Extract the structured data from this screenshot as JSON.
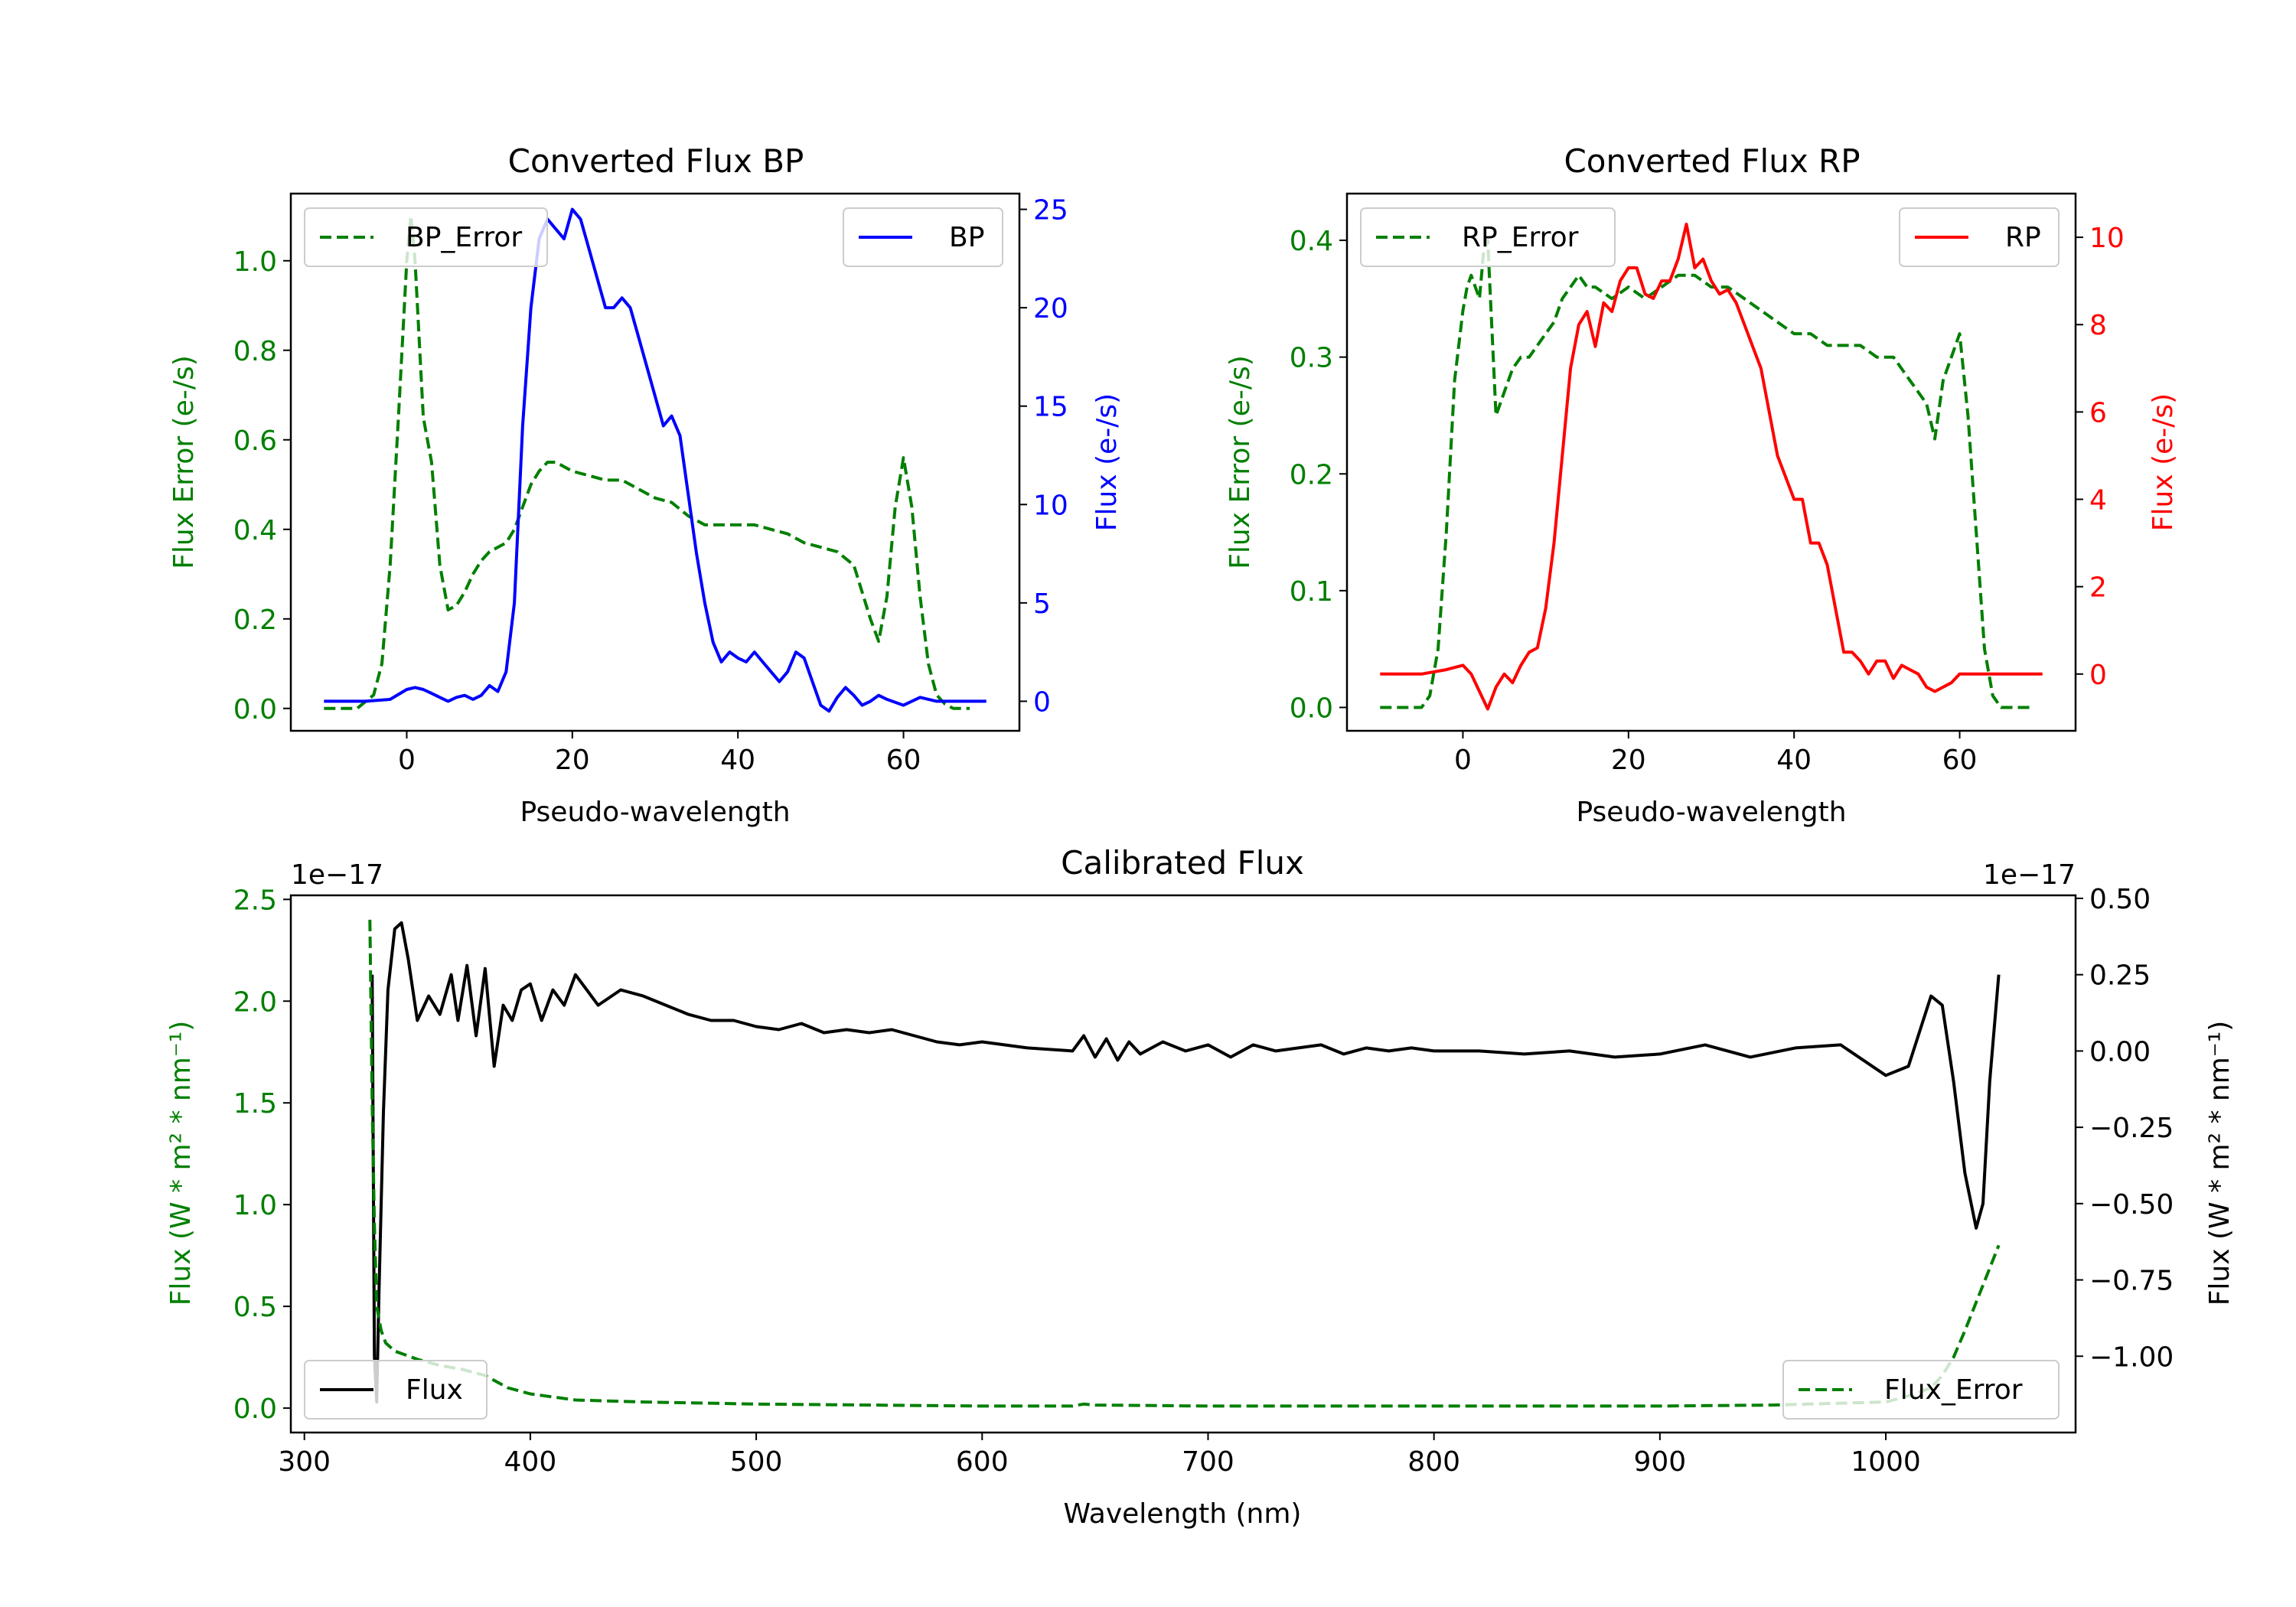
{
  "colors": {
    "error": "#007f00",
    "bp": "#0000ff",
    "rp": "#ff0000",
    "flux": "#000000",
    "axis": "#000000"
  },
  "chart_data": [
    {
      "id": "bp",
      "type": "line",
      "title": "Converted Flux BP",
      "xlabel": "Pseudo-wavelength",
      "xlim": [
        -14,
        74
      ],
      "xticks": [
        0,
        20,
        40,
        60
      ],
      "xtick_labels": [
        "0",
        "20",
        "40",
        "60"
      ],
      "left": {
        "label": "Flux Error (e-/s)",
        "lim": [
          -0.05,
          1.15
        ],
        "ticks": [
          0.0,
          0.2,
          0.4,
          0.6,
          0.8,
          1.0
        ],
        "tick_labels": [
          "0.0",
          "0.2",
          "0.4",
          "0.6",
          "0.8",
          "1.0"
        ],
        "color": "#007f00"
      },
      "right": {
        "label": "Flux (e-/s)",
        "lim": [
          -1.5,
          25.8
        ],
        "ticks": [
          0,
          5,
          10,
          15,
          20,
          25
        ],
        "tick_labels": [
          "0",
          "5",
          "10",
          "15",
          "20",
          "25"
        ],
        "color": "#0000ff"
      },
      "legend_left": {
        "label": "BP_Error",
        "position": "upper left"
      },
      "legend_right": {
        "label": "BP",
        "position": "upper right"
      },
      "series": [
        {
          "name": "BP_Error",
          "axis": "left",
          "style": "dashed",
          "color": "#007f00",
          "x": [
            -10,
            -6,
            -4,
            -3,
            -2,
            -1,
            0,
            0.5,
            1,
            2,
            3,
            4,
            5,
            6,
            7,
            8,
            9,
            10,
            11,
            12,
            13,
            14,
            15,
            16,
            17,
            18,
            20,
            22,
            24,
            26,
            28,
            30,
            32,
            34,
            36,
            38,
            40,
            42,
            44,
            46,
            48,
            50,
            52,
            54,
            56,
            57,
            58,
            59,
            60,
            61,
            62,
            63,
            64,
            65,
            66,
            68
          ],
          "y": [
            0.0,
            0.0,
            0.03,
            0.1,
            0.32,
            0.65,
            1.0,
            1.1,
            1.0,
            0.65,
            0.55,
            0.32,
            0.22,
            0.23,
            0.26,
            0.3,
            0.33,
            0.35,
            0.36,
            0.37,
            0.4,
            0.45,
            0.5,
            0.53,
            0.55,
            0.55,
            0.53,
            0.52,
            0.51,
            0.51,
            0.49,
            0.47,
            0.46,
            0.43,
            0.41,
            0.41,
            0.41,
            0.41,
            0.4,
            0.39,
            0.37,
            0.36,
            0.35,
            0.32,
            0.2,
            0.15,
            0.25,
            0.45,
            0.56,
            0.45,
            0.25,
            0.1,
            0.03,
            0.01,
            0.0,
            0.0
          ]
        },
        {
          "name": "BP",
          "axis": "right",
          "style": "solid",
          "color": "#0000ff",
          "x": [
            -10,
            -5,
            -2,
            0,
            1,
            2,
            3,
            4,
            5,
            6,
            7,
            8,
            9,
            10,
            11,
            12,
            13,
            14,
            15,
            16,
            17,
            18,
            19,
            20,
            21,
            22,
            23,
            24,
            25,
            26,
            27,
            28,
            29,
            30,
            31,
            32,
            33,
            34,
            35,
            36,
            37,
            38,
            39,
            40,
            41,
            42,
            43,
            44,
            45,
            46,
            47,
            48,
            49,
            50,
            51,
            52,
            53,
            54,
            55,
            56,
            57,
            58,
            60,
            62,
            64,
            66,
            70
          ],
          "y": [
            0.0,
            0.0,
            0.1,
            0.6,
            0.7,
            0.6,
            0.4,
            0.2,
            0.0,
            0.2,
            0.3,
            0.1,
            0.3,
            0.8,
            0.5,
            1.5,
            5.0,
            14.0,
            20.0,
            23.5,
            24.5,
            24.0,
            23.5,
            25.0,
            24.5,
            23.0,
            21.5,
            20.0,
            20.0,
            20.5,
            20.0,
            18.5,
            17.0,
            15.5,
            14.0,
            14.5,
            13.5,
            10.5,
            7.5,
            5.0,
            3.0,
            2.0,
            2.5,
            2.2,
            2.0,
            2.5,
            2.0,
            1.5,
            1.0,
            1.5,
            2.5,
            2.2,
            1.0,
            -0.2,
            -0.5,
            0.2,
            0.7,
            0.3,
            -0.2,
            0.0,
            0.3,
            0.1,
            -0.2,
            0.2,
            0.0,
            0.0,
            0.0
          ]
        }
      ]
    },
    {
      "id": "rp",
      "type": "line",
      "title": "Converted Flux RP",
      "xlabel": "Pseudo-wavelength",
      "xlim": [
        -14,
        74
      ],
      "xticks": [
        0,
        20,
        40,
        60
      ],
      "xtick_labels": [
        "0",
        "20",
        "40",
        "60"
      ],
      "left": {
        "label": "Flux Error (e-/s)",
        "lim": [
          -0.02,
          0.44
        ],
        "ticks": [
          0.0,
          0.1,
          0.2,
          0.3,
          0.4
        ],
        "tick_labels": [
          "0.0",
          "0.1",
          "0.2",
          "0.3",
          "0.4"
        ],
        "color": "#007f00"
      },
      "right": {
        "label": "Flux (e-/s)",
        "lim": [
          -1.3,
          11.0
        ],
        "ticks": [
          0,
          2,
          4,
          6,
          8,
          10
        ],
        "tick_labels": [
          "0",
          "2",
          "4",
          "6",
          "8",
          "10"
        ],
        "color": "#ff0000"
      },
      "legend_left": {
        "label": "RP_Error",
        "position": "upper left"
      },
      "legend_right": {
        "label": "RP",
        "position": "upper right"
      },
      "series": [
        {
          "name": "RP_Error",
          "axis": "left",
          "style": "dashed",
          "color": "#007f00",
          "x": [
            -10,
            -5,
            -4,
            -3,
            -2,
            -1,
            0,
            0.5,
            1,
            2,
            2.5,
            3,
            4,
            5,
            6,
            7,
            8,
            9,
            10,
            11,
            12,
            13,
            14,
            15,
            16,
            18,
            20,
            22,
            24,
            26,
            28,
            30,
            32,
            34,
            36,
            38,
            40,
            42,
            44,
            46,
            48,
            50,
            52,
            54,
            55,
            56,
            57,
            58,
            59,
            60,
            61,
            62,
            63,
            64,
            65,
            67,
            69
          ],
          "y": [
            0.0,
            0.0,
            0.01,
            0.05,
            0.15,
            0.28,
            0.34,
            0.36,
            0.37,
            0.35,
            0.39,
            0.4,
            0.25,
            0.27,
            0.29,
            0.3,
            0.3,
            0.31,
            0.32,
            0.33,
            0.35,
            0.36,
            0.37,
            0.36,
            0.36,
            0.35,
            0.36,
            0.35,
            0.36,
            0.37,
            0.37,
            0.36,
            0.36,
            0.35,
            0.34,
            0.33,
            0.32,
            0.32,
            0.31,
            0.31,
            0.31,
            0.3,
            0.3,
            0.28,
            0.27,
            0.26,
            0.23,
            0.28,
            0.3,
            0.32,
            0.25,
            0.15,
            0.05,
            0.01,
            0.0,
            0.0,
            0.0
          ]
        },
        {
          "name": "RP",
          "axis": "right",
          "style": "solid",
          "color": "#ff0000",
          "x": [
            -10,
            -5,
            -2,
            0,
            1,
            2,
            3,
            4,
            5,
            6,
            7,
            8,
            9,
            10,
            11,
            12,
            13,
            14,
            15,
            16,
            17,
            18,
            19,
            20,
            21,
            22,
            23,
            24,
            25,
            26,
            27,
            28,
            29,
            30,
            31,
            32,
            33,
            34,
            35,
            36,
            37,
            38,
            39,
            40,
            41,
            42,
            43,
            44,
            45,
            46,
            47,
            48,
            49,
            50,
            51,
            52,
            53,
            54,
            55,
            56,
            57,
            58,
            59,
            60,
            62,
            64,
            66,
            68,
            70
          ],
          "y": [
            0.0,
            0.0,
            0.1,
            0.2,
            0.0,
            -0.4,
            -0.8,
            -0.3,
            0.0,
            -0.2,
            0.2,
            0.5,
            0.6,
            1.5,
            3.0,
            5.0,
            7.0,
            8.0,
            8.3,
            7.5,
            8.5,
            8.3,
            9.0,
            9.3,
            9.3,
            8.7,
            8.6,
            9.0,
            9.0,
            9.5,
            10.3,
            9.3,
            9.5,
            9.0,
            8.7,
            8.8,
            8.5,
            8.0,
            7.5,
            7.0,
            6.0,
            5.0,
            4.5,
            4.0,
            4.0,
            3.0,
            3.0,
            2.5,
            1.5,
            0.5,
            0.5,
            0.3,
            0.0,
            0.3,
            0.3,
            -0.1,
            0.2,
            0.1,
            0.0,
            -0.3,
            -0.4,
            -0.3,
            -0.2,
            0.0,
            0.0,
            0.0,
            0.0,
            0.0,
            0.0
          ]
        }
      ]
    },
    {
      "id": "cal",
      "type": "line",
      "title": "Calibrated Flux",
      "xlabel": "Wavelength (nm)",
      "xlim": [
        294,
        1084
      ],
      "xticks": [
        300,
        400,
        500,
        600,
        700,
        800,
        900,
        1000
      ],
      "xtick_labels": [
        "300",
        "400",
        "500",
        "600",
        "700",
        "800",
        "900",
        "1000"
      ],
      "left": {
        "label": "Flux (W * m² * nm⁻¹)",
        "offset": "1e−17",
        "lim": [
          -0.12,
          2.52
        ],
        "ticks": [
          0.0,
          0.5,
          1.0,
          1.5,
          2.0,
          2.5
        ],
        "tick_labels": [
          "0.0",
          "0.5",
          "1.0",
          "1.5",
          "2.0",
          "2.5"
        ],
        "color": "#007f00"
      },
      "right": {
        "label": "Flux (W * m² * nm⁻¹)",
        "offset": "1e−17",
        "lim": [
          -1.25,
          0.51
        ],
        "ticks": [
          -1.0,
          -0.75,
          -0.5,
          -0.25,
          0.0,
          0.25,
          0.5
        ],
        "tick_labels": [
          "−1.00",
          "−0.75",
          "−0.50",
          "−0.25",
          "0.00",
          "0.25",
          "0.50"
        ],
        "color": "#000000"
      },
      "legend_left": {
        "label": "Flux",
        "position": "lower left"
      },
      "legend_right": {
        "label": "Flux_Error",
        "position": "lower right"
      },
      "series": [
        {
          "name": "Flux",
          "axis": "right",
          "style": "solid",
          "color": "#000000",
          "x": [
            330,
            331,
            332,
            333,
            335,
            337,
            340,
            343,
            346,
            350,
            355,
            360,
            365,
            368,
            372,
            376,
            380,
            384,
            388,
            392,
            396,
            400,
            405,
            410,
            415,
            420,
            425,
            430,
            440,
            450,
            460,
            470,
            480,
            490,
            500,
            510,
            520,
            530,
            540,
            550,
            560,
            570,
            580,
            590,
            600,
            620,
            640,
            645,
            650,
            655,
            660,
            665,
            670,
            680,
            690,
            700,
            710,
            720,
            730,
            740,
            750,
            760,
            770,
            780,
            790,
            800,
            820,
            840,
            860,
            880,
            900,
            920,
            940,
            960,
            980,
            1000,
            1010,
            1020,
            1025,
            1030,
            1035,
            1040,
            1043,
            1046,
            1050
          ],
          "y": [
            0.25,
            -1.0,
            -1.15,
            -0.8,
            -0.2,
            0.2,
            0.4,
            0.42,
            0.3,
            0.1,
            0.18,
            0.12,
            0.25,
            0.1,
            0.28,
            0.05,
            0.27,
            -0.05,
            0.15,
            0.1,
            0.2,
            0.22,
            0.1,
            0.2,
            0.15,
            0.25,
            0.2,
            0.15,
            0.2,
            0.18,
            0.15,
            0.12,
            0.1,
            0.1,
            0.08,
            0.07,
            0.09,
            0.06,
            0.07,
            0.06,
            0.07,
            0.05,
            0.03,
            0.02,
            0.03,
            0.01,
            0.0,
            0.05,
            -0.02,
            0.04,
            -0.03,
            0.03,
            -0.01,
            0.03,
            0.0,
            0.02,
            -0.02,
            0.02,
            0.0,
            0.01,
            0.02,
            -0.01,
            0.01,
            0.0,
            0.01,
            0.0,
            0.0,
            -0.01,
            0.0,
            -0.02,
            -0.01,
            0.02,
            -0.02,
            0.01,
            0.02,
            -0.08,
            -0.05,
            0.18,
            0.15,
            -0.1,
            -0.4,
            -0.58,
            -0.5,
            -0.1,
            0.25
          ]
        },
        {
          "name": "Flux_Error",
          "axis": "left",
          "style": "dashed",
          "color": "#007f00",
          "x": [
            329,
            330,
            331,
            332,
            334,
            336,
            340,
            350,
            360,
            370,
            380,
            390,
            400,
            420,
            450,
            500,
            550,
            600,
            640,
            645,
            650,
            700,
            800,
            900,
            950,
            1000,
            1010,
            1020,
            1025,
            1030,
            1035,
            1040,
            1045,
            1050
          ],
          "y": [
            2.4,
            1.5,
            0.9,
            0.5,
            0.38,
            0.32,
            0.28,
            0.24,
            0.21,
            0.19,
            0.16,
            0.1,
            0.07,
            0.04,
            0.03,
            0.02,
            0.015,
            0.01,
            0.01,
            0.02,
            0.015,
            0.01,
            0.01,
            0.01,
            0.015,
            0.03,
            0.06,
            0.1,
            0.16,
            0.25,
            0.38,
            0.52,
            0.66,
            0.8
          ]
        }
      ]
    }
  ]
}
